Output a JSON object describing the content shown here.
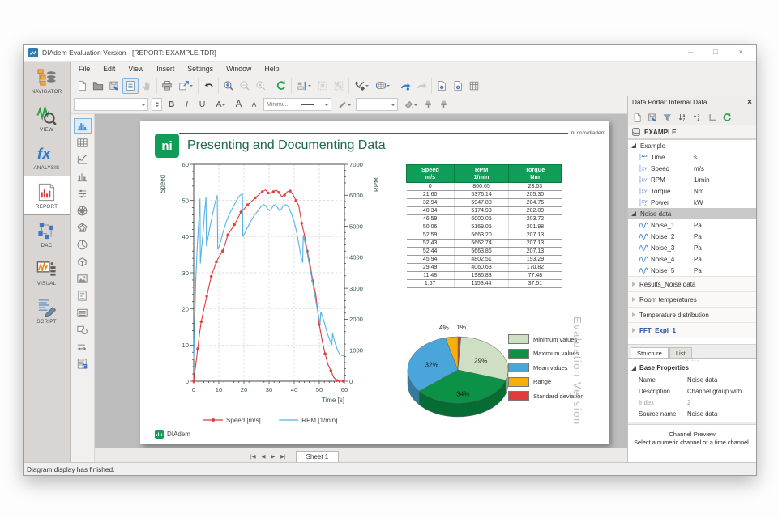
{
  "window": {
    "title": "DIAdem Evaluation Version - [REPORT:  EXAMPLE.TDR]",
    "controls": {
      "minimize": "–",
      "maximize": "□",
      "close": "×"
    }
  },
  "menubar": [
    "File",
    "Edit",
    "View",
    "Insert",
    "Settings",
    "Window",
    "Help"
  ],
  "toolbar_main": {
    "groups": [
      [
        "new-file",
        "open-file",
        "save-file",
        "document-view",
        "pan-hand"
      ],
      [
        "print",
        "export"
      ],
      [
        "undo"
      ],
      [
        "zoom-in",
        "zoom-out",
        "zoom-reset"
      ],
      [
        "refresh"
      ],
      [
        "align-layout",
        "group-move",
        "group-copy"
      ],
      [
        "tools",
        "table-structure"
      ],
      [
        "run-report",
        "run-disabled"
      ],
      [
        "page-settings",
        "page-info",
        "grid-layout"
      ]
    ],
    "selected": "document-view",
    "dropdown_after": [
      "export",
      "align-layout",
      "tools",
      "table-structure"
    ]
  },
  "toolbar_format": {
    "bold": "B",
    "italic": "I",
    "underline": "U",
    "font_color": "A",
    "font_larger": "A",
    "font_smaller": "A",
    "line_style": "Minimu..."
  },
  "sidebar": {
    "items": [
      {
        "label": "NAVIGATOR",
        "icon": "navigator"
      },
      {
        "label": "VIEW",
        "icon": "view"
      },
      {
        "label": "ANALYSIS",
        "icon": "analysis"
      },
      {
        "label": "REPORT",
        "icon": "report",
        "selected": true
      },
      {
        "label": "DAC",
        "icon": "dac"
      },
      {
        "label": "VISUAL",
        "icon": "visual"
      },
      {
        "label": "SCRIPT",
        "icon": "script"
      }
    ]
  },
  "report_objects": {
    "items": [
      "2d-axis-system",
      "channel-table",
      "curve-chart",
      "bar-chart",
      "slider",
      "polar-chart",
      "radar-chart",
      "pie-chart",
      "3d-axis-system",
      "image",
      "text-frame",
      "list",
      "shapes",
      "arrow",
      "formatted-text"
    ],
    "selected": "2d-axis-system"
  },
  "report": {
    "brand_link": "ni.com/diadem",
    "logo": "ni",
    "title": "Presenting and Documenting Data",
    "watermark": "Evaluation Version",
    "footer_logo": "DIAdem"
  },
  "chart_data": [
    {
      "type": "line",
      "title": "",
      "xlabel": "Time [s]",
      "xlim": [
        0,
        60
      ],
      "xticks": [
        0,
        10,
        20,
        30,
        40,
        50,
        60
      ],
      "left_axis": {
        "label": "Speed",
        "lim": [
          0,
          60
        ],
        "ticks": [
          0,
          10,
          20,
          30,
          40,
          50,
          60
        ]
      },
      "right_axis": {
        "label": "RPM",
        "lim": [
          0,
          7000
        ],
        "ticks": [
          0,
          1000,
          2000,
          3000,
          4000,
          5000,
          6000,
          7000
        ]
      },
      "grid": "dashed",
      "legend_position": "bottom",
      "series": [
        {
          "name": "Speed [m/s]",
          "color": "#e23b3b",
          "axis": "left",
          "marker": "circle",
          "points": [
            [
              0,
              0
            ],
            [
              0.8,
              4.5
            ],
            [
              1.6,
              9
            ],
            [
              2.3,
              13
            ],
            [
              3,
              16.5
            ],
            [
              4.4,
              21
            ],
            [
              5.2,
              23.5
            ],
            [
              6,
              26
            ],
            [
              7,
              29
            ],
            [
              8,
              31
            ],
            [
              9,
              33
            ],
            [
              10.4,
              34.8
            ],
            [
              11.5,
              36
            ],
            [
              12.6,
              38.2
            ],
            [
              13.6,
              40.5
            ],
            [
              15,
              42
            ],
            [
              16.2,
              43.3
            ],
            [
              17.5,
              45
            ],
            [
              18.8,
              46.8
            ],
            [
              20,
              47.6
            ],
            [
              21.5,
              48.8
            ],
            [
              23,
              49.7
            ],
            [
              24.5,
              50.7
            ],
            [
              26,
              51.6
            ],
            [
              27.3,
              52.4
            ],
            [
              28.6,
              52.9
            ],
            [
              29.6,
              52.1
            ],
            [
              30.6,
              51.9
            ],
            [
              31.7,
              52.4
            ],
            [
              32.8,
              52.9
            ],
            [
              33.9,
              52.2
            ],
            [
              35,
              51.1
            ],
            [
              36.2,
              51.5
            ],
            [
              37.3,
              52.4
            ],
            [
              38.4,
              52.6
            ],
            [
              39.5,
              51.7
            ],
            [
              40.7,
              50
            ],
            [
              41.8,
              48.6
            ],
            [
              43,
              43.7
            ],
            [
              44.1,
              40.4
            ],
            [
              45.2,
              36
            ],
            [
              46.3,
              32.5
            ],
            [
              47.4,
              27.8
            ],
            [
              48.6,
              23.9
            ],
            [
              50,
              15.7
            ],
            [
              51.2,
              11
            ],
            [
              52.3,
              7.6
            ],
            [
              53.5,
              4.5
            ],
            [
              54.6,
              2.9
            ],
            [
              55.8,
              1
            ],
            [
              57,
              0.2
            ],
            [
              58.2,
              0.05
            ],
            [
              59.5,
              0
            ]
          ]
        },
        {
          "name": "RPM [1/min]",
          "color": "#56b3e4",
          "axis": "right",
          "marker": "none",
          "points": [
            [
              0,
              700
            ],
            [
              0.3,
              1600
            ],
            [
              0.8,
              3200
            ],
            [
              1.4,
              4300
            ],
            [
              2,
              5150
            ],
            [
              2.5,
              5900
            ],
            [
              2.65,
              3800
            ],
            [
              3.2,
              4350
            ],
            [
              3.8,
              4850
            ],
            [
              4.4,
              5500
            ],
            [
              4.9,
              5950
            ],
            [
              5.05,
              4350
            ],
            [
              5.6,
              4600
            ],
            [
              6.5,
              5000
            ],
            [
              7.5,
              5400
            ],
            [
              8.5,
              5750
            ],
            [
              9.4,
              6000
            ],
            [
              9.55,
              4250
            ],
            [
              10.2,
              4350
            ],
            [
              11,
              4600
            ],
            [
              12,
              4900
            ],
            [
              13,
              5150
            ],
            [
              14.2,
              5400
            ],
            [
              15.5,
              5600
            ],
            [
              16.5,
              5750
            ],
            [
              17.5,
              5900
            ],
            [
              18.5,
              6000
            ],
            [
              19.4,
              6050
            ],
            [
              19.55,
              4700
            ],
            [
              20.2,
              4750
            ],
            [
              21,
              4900
            ],
            [
              22,
              5050
            ],
            [
              23,
              5200
            ],
            [
              24,
              5340
            ],
            [
              25,
              5440
            ],
            [
              26,
              5550
            ],
            [
              27,
              5650
            ],
            [
              27.8,
              5700
            ],
            [
              28.6,
              5670
            ],
            [
              29.4,
              5560
            ],
            [
              30.2,
              5500
            ],
            [
              31,
              5570
            ],
            [
              31.8,
              5680
            ],
            [
              32.6,
              5700
            ],
            [
              33.4,
              5600
            ],
            [
              34.2,
              5500
            ],
            [
              35,
              5570
            ],
            [
              35.8,
              5670
            ],
            [
              36.6,
              5700
            ],
            [
              37.4,
              5670
            ],
            [
              38.2,
              5550
            ],
            [
              39,
              5380
            ],
            [
              40,
              5150
            ],
            [
              41,
              4800
            ],
            [
              42,
              4350
            ],
            [
              43,
              3900
            ],
            [
              43.4,
              3850
            ],
            [
              43.6,
              4720
            ],
            [
              44.5,
              4400
            ],
            [
              45.5,
              4000
            ],
            [
              46.5,
              3550
            ],
            [
              47.5,
              3100
            ],
            [
              48.5,
              2650
            ],
            [
              49.5,
              2200
            ],
            [
              50.3,
              1850
            ],
            [
              50.6,
              2250
            ],
            [
              51.2,
              2100
            ],
            [
              52,
              1900
            ],
            [
              52.8,
              1650
            ],
            [
              53.6,
              1450
            ],
            [
              54.4,
              1280
            ],
            [
              55,
              1200
            ],
            [
              55.3,
              1550
            ],
            [
              55.9,
              1350
            ],
            [
              56.6,
              1150
            ],
            [
              57.3,
              1000
            ],
            [
              58,
              880
            ],
            [
              59,
              830
            ],
            [
              60,
              820
            ]
          ]
        }
      ]
    },
    {
      "type": "table",
      "columns": [
        {
          "title": "Speed",
          "unit": "m/s"
        },
        {
          "title": "RPM",
          "unit": "1/min"
        },
        {
          "title": "Torque",
          "unit": "Nm"
        }
      ],
      "rows": [
        [
          "0",
          "800.65",
          "23.03"
        ],
        [
          "21.60",
          "5376.14",
          "205.30"
        ],
        [
          "32.94",
          "5947.88",
          "204.75"
        ],
        [
          "40.34",
          "5174.93",
          "202.09"
        ],
        [
          "46.59",
          "6000.05",
          "203.72"
        ],
        [
          "50.06",
          "5169.05",
          "201.98"
        ],
        [
          "52.59",
          "5663.20",
          "207.13"
        ],
        [
          "52.43",
          "5662.74",
          "207.13"
        ],
        [
          "52.44",
          "5663.86",
          "207.13"
        ],
        [
          "45.94",
          "4802.51",
          "193.29"
        ],
        [
          "29.49",
          "4060.63",
          "170.82"
        ],
        [
          "11.48",
          "1986.83",
          "77.48"
        ],
        [
          "1.67",
          "1153.44",
          "37.51"
        ]
      ]
    },
    {
      "type": "pie",
      "labels": [
        "Minimum values",
        "Maximum values",
        "Mean values",
        "Range",
        "Standard deviation"
      ],
      "values": [
        29,
        34,
        32,
        4,
        1
      ],
      "colors": [
        "#cfdfc4",
        "#0b9247",
        "#4aa5db",
        "#f4b10b",
        "#e23b3b"
      ],
      "colors_dark": [
        "#a3b999",
        "#076b34",
        "#35799f",
        "#b98706",
        "#a82c2c"
      ],
      "draw_sequence": [
        4,
        0,
        1,
        2,
        3
      ],
      "legend_position": "right",
      "label_format": "percent"
    }
  ],
  "data_portal": {
    "title": "Data Portal: Internal Data",
    "close": "×",
    "toolbar": [
      "new-entry",
      "register-data",
      "filter",
      "sort-ascending",
      "sort-descending",
      "structure-level",
      "refresh"
    ],
    "root": "EXAMPLE",
    "groups": [
      {
        "name": "Example",
        "state": "expanded",
        "channels": [
          {
            "icon": "channel-numeric",
            "name": "Time",
            "unit": "s"
          },
          {
            "icon": "channel-xy",
            "name": "Speed",
            "unit": "m/s"
          },
          {
            "icon": "channel-xy",
            "name": "RPM",
            "unit": "1/min"
          },
          {
            "icon": "channel-xy",
            "name": "Torque",
            "unit": "Nm"
          },
          {
            "icon": "channel-xy-time",
            "name": "Power",
            "unit": "kW"
          }
        ]
      },
      {
        "name": "Noise data",
        "state": "expanded",
        "selected": true,
        "channels": [
          {
            "icon": "channel-waveform",
            "name": "Noise_1",
            "unit": "Pa"
          },
          {
            "icon": "channel-waveform",
            "name": "Noise_2",
            "unit": "Pa"
          },
          {
            "icon": "channel-waveform",
            "name": "Noise_3",
            "unit": "Pa"
          },
          {
            "icon": "channel-waveform",
            "name": "Noise_4",
            "unit": "Pa"
          },
          {
            "icon": "channel-waveform",
            "name": "Noise_5",
            "unit": "Pa"
          }
        ]
      },
      {
        "name": "Results_Noise data",
        "state": "collapsed"
      },
      {
        "name": "Room temperatures",
        "state": "collapsed"
      },
      {
        "name": "Temperature distribution",
        "state": "collapsed"
      },
      {
        "name": "FFT_Expl_1",
        "state": "collapsed",
        "style": "link"
      }
    ],
    "tabs": [
      {
        "label": "Structure",
        "active": true
      },
      {
        "label": "List"
      }
    ],
    "properties": {
      "title": "Base Properties",
      "rows": [
        {
          "name": "Name",
          "value": "Noise data"
        },
        {
          "name": "Description",
          "value": "Channel group with ..."
        },
        {
          "name": "Index",
          "value": "2",
          "muted": true
        },
        {
          "name": "Source name",
          "value": "Noise data"
        }
      ]
    },
    "preview": {
      "title": "Channel Preview",
      "message": "Select a numeric channel or a time channel."
    }
  },
  "sheetbar": {
    "nav": [
      "first",
      "prev",
      "next",
      "last"
    ],
    "tab": "Sheet 1"
  },
  "statusbar": {
    "text": "Diagram display has finished."
  }
}
